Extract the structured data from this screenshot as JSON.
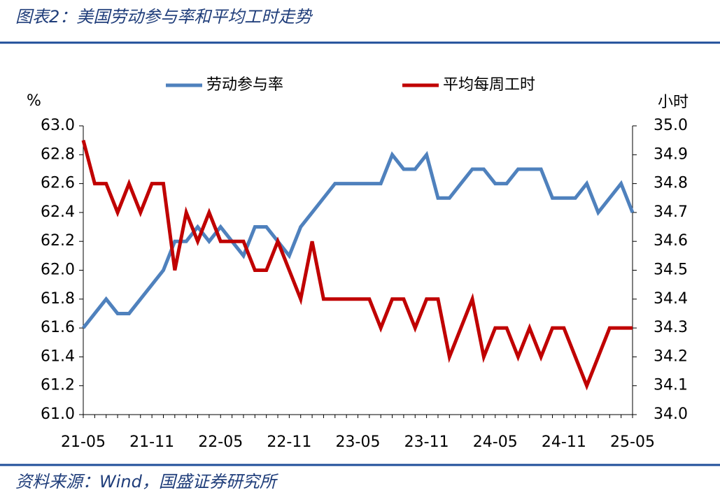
{
  "chart_data": {
    "type": "line",
    "title": "图表2：美国劳动参与率和平均工时走势",
    "source": "资料来源：Wind，国盛证券研究所",
    "y_label": "%",
    "y2_label": "小时",
    "categories": [
      "21-05",
      null,
      null,
      null,
      null,
      null,
      "21-11",
      null,
      null,
      null,
      null,
      null,
      "22-05",
      null,
      null,
      null,
      null,
      null,
      "22-11",
      null,
      null,
      null,
      null,
      null,
      "23-05",
      null,
      null,
      null,
      null,
      null,
      "23-11",
      null,
      null,
      null,
      null,
      null,
      "24-05",
      null,
      null,
      null,
      null,
      null,
      "24-11",
      null,
      null,
      null,
      null,
      null,
      "25-05"
    ],
    "series": [
      {
        "name": "劳动参与率",
        "color": "#4f81bd",
        "axis": "y",
        "values": [
          61.6,
          61.7,
          61.8,
          61.7,
          61.7,
          61.8,
          61.9,
          62.0,
          62.2,
          62.2,
          62.3,
          62.2,
          62.3,
          62.2,
          62.1,
          62.3,
          62.3,
          62.2,
          62.1,
          62.3,
          62.4,
          62.5,
          62.6,
          62.6,
          62.6,
          62.6,
          62.6,
          62.8,
          62.7,
          62.7,
          62.8,
          62.5,
          62.5,
          62.6,
          62.7,
          62.7,
          62.6,
          62.6,
          62.7,
          62.7,
          62.7,
          62.5,
          62.5,
          62.5,
          62.6,
          62.4,
          62.5,
          62.6,
          62.4
        ]
      },
      {
        "name": "平均每周工时",
        "color": "#c00000",
        "axis": "y2",
        "values": [
          34.95,
          34.8,
          34.8,
          34.7,
          34.8,
          34.7,
          34.8,
          34.8,
          34.5,
          34.7,
          34.6,
          34.7,
          34.6,
          34.6,
          34.6,
          34.5,
          34.5,
          34.6,
          34.5,
          34.4,
          34.6,
          34.4,
          34.4,
          34.4,
          34.4,
          34.4,
          34.3,
          34.4,
          34.4,
          34.3,
          34.4,
          34.4,
          34.2,
          34.3,
          34.4,
          34.2,
          34.3,
          34.3,
          34.2,
          34.3,
          34.2,
          34.3,
          34.3,
          34.2,
          34.1,
          34.2,
          34.3,
          34.3,
          34.3
        ]
      }
    ],
    "ylim": [
      61,
      63
    ],
    "yticks": [
      {
        "value": 61,
        "label": "61.0"
      },
      61.2,
      61.4,
      61.6,
      61.8,
      {
        "value": 62,
        "label": "62.0"
      },
      62.2,
      62.4,
      62.6,
      62.8,
      {
        "value": 63,
        "label": "63.0"
      }
    ],
    "y2lim": [
      34,
      35
    ],
    "y2ticks": [
      {
        "value": 34,
        "label": "34.0"
      },
      34.1,
      34.2,
      34.3,
      34.4,
      34.5,
      34.6,
      34.7,
      34.8,
      34.9,
      {
        "value": 35,
        "label": "35.0"
      }
    ],
    "legend": "top",
    "grid": false
  }
}
